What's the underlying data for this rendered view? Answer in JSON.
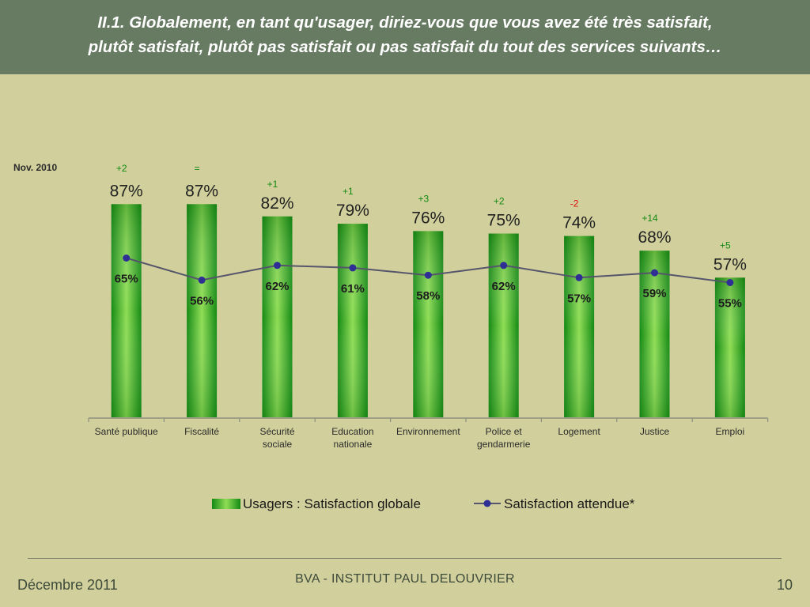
{
  "header": {
    "title_line1": "II.1. Globalement, en tant qu'usager, diriez-vous que vous avez été très satisfait,",
    "title_line2": "plutôt satisfait, plutôt pas satisfait ou pas satisfait du tout des services suivants…"
  },
  "chart_note": "Nov. 2010",
  "footer": {
    "date": "Décembre 2011",
    "center": "BVA - INSTITUT PAUL DELOUVRIER",
    "page": "10"
  },
  "colors": {
    "header_bg": "#677a62",
    "background": "#d1d09c",
    "bar_dark": "#138a13",
    "bar_light": "#8fdd55",
    "line": "#55556b",
    "marker": "#2e2e94",
    "delta_positive": "#118811",
    "delta_negative": "#dd1111"
  },
  "chart_data": {
    "type": "bar",
    "categories": [
      [
        "Santé publique"
      ],
      [
        "Fiscalité"
      ],
      [
        "Sécurité",
        "sociale"
      ],
      [
        "Education",
        "nationale"
      ],
      [
        "Environnement"
      ],
      [
        "Police et",
        "gendarmerie"
      ],
      [
        "Logement"
      ],
      [
        "Justice"
      ],
      [
        "Emploi"
      ]
    ],
    "series": [
      {
        "name": "Usagers : Satisfaction globale",
        "kind": "bar",
        "values": [
          87,
          87,
          82,
          79,
          76,
          75,
          74,
          68,
          57
        ],
        "labels": [
          "87%",
          "87%",
          "82%",
          "79%",
          "76%",
          "75%",
          "74%",
          "68%",
          "57%"
        ]
      },
      {
        "name": "Satisfaction attendue*",
        "kind": "line",
        "values": [
          65,
          56,
          62,
          61,
          58,
          62,
          57,
          59,
          55
        ],
        "labels": [
          "65%",
          "56%",
          "62%",
          "61%",
          "58%",
          "62%",
          "57%",
          "59%",
          "55%"
        ]
      }
    ],
    "change_vs_nov_2010": [
      "+2",
      "=",
      "+1",
      "+1",
      "+3",
      "+2",
      "-2",
      "+14",
      "+5"
    ],
    "ylim": [
      0,
      100
    ],
    "grid": false,
    "legend": "bottom-center"
  }
}
